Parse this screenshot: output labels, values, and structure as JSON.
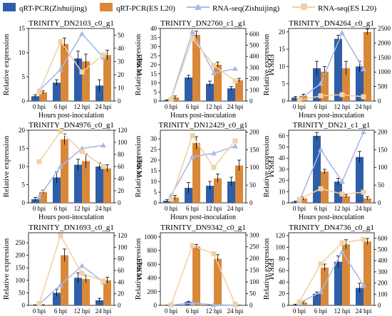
{
  "legend": [
    {
      "label": "qRT-PCR(Zishuijing)",
      "kind": "bar",
      "color": "#2e5ea8"
    },
    {
      "label": "qRT-PCR(ES L20)",
      "kind": "bar",
      "color": "#d9883a"
    },
    {
      "label": "RNA-seq(Zishuijing)",
      "kind": "line",
      "color": "#aab8e6"
    },
    {
      "label": "RNA-seq(ES L20)",
      "kind": "line",
      "color": "#f0d2a4"
    }
  ],
  "chart_data": [
    {
      "type": "bar",
      "title": "TRINITY_DN2103_c0_g1",
      "xlabel": "Hours post-inoculation",
      "ylabel": "Relative expression",
      "y2label": "FPKM",
      "categories": [
        "0 hpi",
        "6 hpi",
        "12 hpi",
        "24 hpi"
      ],
      "ylim": [
        0,
        15
      ],
      "yticks": [
        0,
        5,
        10,
        15
      ],
      "y2lim": [
        0,
        55
      ],
      "y2ticks": [
        0,
        10,
        20,
        30,
        40,
        50
      ],
      "series": [
        {
          "name": "qRT-PCR(Zishuijing)",
          "values": [
            1.0,
            3.8,
            8.8,
            3.2
          ],
          "errors": [
            0.3,
            0.6,
            1.5,
            1.2
          ]
        },
        {
          "name": "qRT-PCR(ES L20)",
          "values": [
            1.8,
            11.8,
            8.2,
            9.5
          ],
          "errors": [
            0.3,
            1.2,
            1.5,
            1.0
          ]
        },
        {
          "name": "RNA-seq(Zishuijing)",
          "axis": "right",
          "values": [
            8,
            24,
            51,
            33
          ]
        },
        {
          "name": "RNA-seq(ES L20)",
          "axis": "right",
          "values": [
            7,
            45,
            22,
            35
          ]
        }
      ]
    },
    {
      "type": "bar",
      "title": "TRINITY_DN2760_c1_g1",
      "xlabel": "Hours post-inoculation",
      "ylabel": "Relative expression",
      "y2label": "FPKM",
      "categories": [
        "0 hpi",
        "6 hpi",
        "12 hpi",
        "24 hpi"
      ],
      "ylim": [
        0,
        40
      ],
      "yticks": [
        0,
        5,
        10,
        15,
        20,
        25,
        30,
        35,
        40
      ],
      "y2lim": [
        0,
        650
      ],
      "y2ticks": [
        0,
        100,
        200,
        300,
        400,
        500,
        600
      ],
      "series": [
        {
          "name": "qRT-PCR(Zishuijing)",
          "values": [
            0.5,
            13.0,
            9.5,
            7.0
          ],
          "errors": [
            0.2,
            1.2,
            1.5,
            1.0
          ]
        },
        {
          "name": "qRT-PCR(ES L20)",
          "values": [
            2.0,
            36.5,
            20.0,
            11.5
          ],
          "errors": [
            0.8,
            2.0,
            1.5,
            1.0
          ]
        },
        {
          "name": "RNA-seq(Zishuijing)",
          "axis": "right",
          "values": [
            20,
            620,
            250,
            290
          ]
        },
        {
          "name": "RNA-seq(ES L20)",
          "axis": "right",
          "values": [
            15,
            560,
            320,
            180
          ]
        }
      ]
    },
    {
      "type": "bar",
      "title": "TRINITY_DN4264_c0_g1",
      "xlabel": "Hours post-inoculation",
      "ylabel": "Relative expression",
      "y2label": "FPKM",
      "categories": [
        "0 hpi",
        "6 hpi",
        "12 hpi",
        "24 hpi"
      ],
      "ylim": [
        0,
        21
      ],
      "yticks": [
        0,
        5,
        10,
        15,
        20
      ],
      "y2lim": [
        0,
        2500
      ],
      "y2ticks": [
        0,
        500,
        1000,
        1500,
        2000,
        2500
      ],
      "series": [
        {
          "name": "qRT-PCR(Zishuijing)",
          "values": [
            1.0,
            9.5,
            18.0,
            10.0
          ],
          "errors": [
            0.3,
            2.0,
            1.0,
            1.5
          ]
        },
        {
          "name": "qRT-PCR(ES L20)",
          "values": [
            1.5,
            8.5,
            9.5,
            20.0
          ],
          "errors": [
            0.5,
            1.5,
            2.0,
            0.8
          ]
        },
        {
          "name": "RNA-seq(Zishuijing)",
          "axis": "right",
          "values": [
            50,
            600,
            2350,
            1100
          ]
        },
        {
          "name": "RNA-seq(ES L20)",
          "axis": "right",
          "values": [
            40,
            180,
            220,
            150
          ]
        }
      ]
    },
    {
      "type": "bar",
      "title": "TRINITY_DN4976_c0_g1",
      "xlabel": "Hours post-inoculation",
      "ylabel": "Relative expression",
      "y2label": "FPKM",
      "categories": [
        "0 hpi",
        "6 hpi",
        "12 hpi",
        "24 hpi"
      ],
      "ylim": [
        0,
        20
      ],
      "yticks": [
        0,
        5,
        10,
        15,
        20
      ],
      "y2lim": [
        0,
        120
      ],
      "y2ticks": [
        0,
        20,
        40,
        60,
        80,
        100,
        120
      ],
      "series": [
        {
          "name": "qRT-PCR(Zishuijing)",
          "values": [
            1.0,
            7.0,
            10.5,
            10.0
          ],
          "errors": [
            0.5,
            1.5,
            1.5,
            1.0
          ]
        },
        {
          "name": "qRT-PCR(ES L20)",
          "values": [
            3.0,
            17.5,
            11.5,
            9.5
          ],
          "errors": [
            0.5,
            1.5,
            2.0,
            1.0
          ]
        },
        {
          "name": "RNA-seq(Zishuijing)",
          "axis": "right",
          "values": [
            10,
            60,
            90,
            95
          ]
        },
        {
          "name": "RNA-seq(ES L20)",
          "axis": "right",
          "values": [
            68,
            118,
            85,
            60
          ]
        }
      ]
    },
    {
      "type": "bar",
      "title": "TRINITY_DN12429_c0_g1",
      "xlabel": "Hours post-inoculation",
      "ylabel": "Relative expression",
      "y2label": "FPKM",
      "categories": [
        "0 hpi",
        "6 hpi",
        "12 hpi",
        "24 hpi"
      ],
      "ylim": [
        0,
        34
      ],
      "yticks": [
        0,
        5,
        10,
        15,
        20,
        25,
        30
      ],
      "y2lim": [
        0,
        205
      ],
      "y2ticks": [
        0,
        50,
        100,
        150,
        200
      ],
      "series": [
        {
          "name": "qRT-PCR(Zishuijing)",
          "values": [
            1.0,
            7.0,
            8.0,
            10.0
          ],
          "errors": [
            0.5,
            2.5,
            2.0,
            2.0
          ]
        },
        {
          "name": "qRT-PCR(ES L20)",
          "values": [
            2.5,
            28.0,
            11.5,
            17.5
          ],
          "errors": [
            1.0,
            3.0,
            2.0,
            2.5
          ]
        },
        {
          "name": "RNA-seq(Zishuijing)",
          "axis": "right",
          "values": [
            20,
            130,
            140,
            160
          ]
        },
        {
          "name": "RNA-seq(ES L20)",
          "axis": "right",
          "values": [
            10,
            190,
            100,
            175
          ]
        }
      ]
    },
    {
      "type": "bar",
      "title": "TRINITY_DN21_c1_g1",
      "xlabel": "Hours post-inoculation",
      "ylabel": "Relative expression",
      "y2label": "FPKM",
      "categories": [
        "0 hpi",
        "6 hpi",
        "12 hpi",
        "24 hpi"
      ],
      "ylim": [
        0,
        65
      ],
      "yticks": [
        0,
        10,
        20,
        30,
        40,
        50,
        60
      ],
      "y2lim": [
        0,
        205
      ],
      "y2ticks": [
        0,
        50,
        100,
        150,
        200
      ],
      "series": [
        {
          "name": "qRT-PCR(Zishuijing)",
          "values": [
            1.0,
            60.0,
            19.0,
            41.0
          ],
          "errors": [
            0.5,
            3.0,
            3.0,
            5.0
          ]
        },
        {
          "name": "qRT-PCR(ES L20)",
          "values": [
            4.0,
            28.0,
            6.0,
            4.0
          ],
          "errors": [
            1.5,
            2.0,
            1.5,
            1.5
          ]
        },
        {
          "name": "RNA-seq(Zishuijing)",
          "axis": "right",
          "values": [
            5,
            150,
            60,
            200
          ]
        },
        {
          "name": "RNA-seq(ES L20)",
          "axis": "right",
          "values": [
            10,
            40,
            25,
            30
          ]
        }
      ]
    },
    {
      "type": "bar",
      "title": "TRINITY_DN1693_c0_g1",
      "xlabel": "Hours post-inoculation",
      "ylabel": "Relative expression",
      "y2label": "FPKM",
      "categories": [
        "0 hpi",
        "6 hpi",
        "12 hpi",
        "24 hpi"
      ],
      "ylim": [
        0,
        290
      ],
      "yticks": [
        0,
        50,
        100,
        150,
        200,
        250
      ],
      "y2lim": [
        0,
        125
      ],
      "y2ticks": [
        0,
        20,
        40,
        60,
        80,
        100,
        120
      ],
      "series": [
        {
          "name": "qRT-PCR(Zishuijing)",
          "values": [
            1,
            50,
            110,
            20
          ],
          "errors": [
            1,
            15,
            20,
            8
          ]
        },
        {
          "name": "qRT-PCR(ES L20)",
          "values": [
            1,
            200,
            105,
            100
          ],
          "errors": [
            1,
            25,
            15,
            12
          ]
        },
        {
          "name": "RNA-seq(Zishuijing)",
          "axis": "right",
          "values": [
            2,
            35,
            68,
            40
          ]
        },
        {
          "name": "RNA-seq(ES L20)",
          "axis": "right",
          "values": [
            3,
            120,
            55,
            42
          ]
        }
      ]
    },
    {
      "type": "bar",
      "title": "TRINITY_DN9342_c0_g1",
      "xlabel": "Hours post-inoculation",
      "ylabel": "Relative expression",
      "y2label": "FPKM",
      "categories": [
        "0 hpi",
        "6 hpi",
        "12 hpi",
        "24 hpi"
      ],
      "ylim": [
        0,
        1060
      ],
      "yticks": [
        0,
        200,
        400,
        600,
        800,
        1000
      ],
      "y2lim": [
        0,
        310
      ],
      "y2ticks": [
        0,
        50,
        100,
        150,
        200,
        250,
        300
      ],
      "series": [
        {
          "name": "qRT-PCR(Zishuijing)",
          "values": [
            1,
            50,
            1,
            1
          ],
          "errors": [
            1,
            10,
            1,
            1
          ]
        },
        {
          "name": "qRT-PCR(ES L20)",
          "values": [
            2,
            860,
            680,
            1
          ],
          "errors": [
            1,
            30,
            60,
            1
          ]
        },
        {
          "name": "RNA-seq(Zishuijing)",
          "axis": "right",
          "values": [
            1,
            10,
            2,
            1
          ]
        },
        {
          "name": "RNA-seq(ES L20)",
          "axis": "right",
          "values": [
            2,
            255,
            220,
            5
          ]
        }
      ]
    },
    {
      "type": "bar",
      "title": "TRINITY_DN4736_c0_g1",
      "xlabel": "Hours post-inoculation",
      "ylabel": "Relative expression",
      "y2label": "FPKM",
      "categories": [
        "0 hpi",
        "6 hpi",
        "12 hpi",
        "24 hpi"
      ],
      "ylim": [
        0,
        125
      ],
      "yticks": [
        0,
        20,
        40,
        60,
        80,
        100,
        120
      ],
      "y2lim": [
        0,
        650
      ],
      "y2ticks": [
        0,
        100,
        200,
        300,
        400,
        500,
        600
      ],
      "series": [
        {
          "name": "qRT-PCR(Zishuijing)",
          "values": [
            1,
            20,
            75,
            30
          ],
          "errors": [
            1,
            3,
            10,
            8
          ]
        },
        {
          "name": "qRT-PCR(ES L20)",
          "values": [
            5,
            65,
            105,
            110
          ],
          "errors": [
            2,
            6,
            8,
            5
          ]
        },
        {
          "name": "RNA-seq(Zishuijing)",
          "axis": "right",
          "values": [
            20,
            120,
            480,
            180
          ]
        },
        {
          "name": "RNA-seq(ES L20)",
          "axis": "right",
          "values": [
            30,
            370,
            560,
            590
          ]
        }
      ]
    }
  ]
}
